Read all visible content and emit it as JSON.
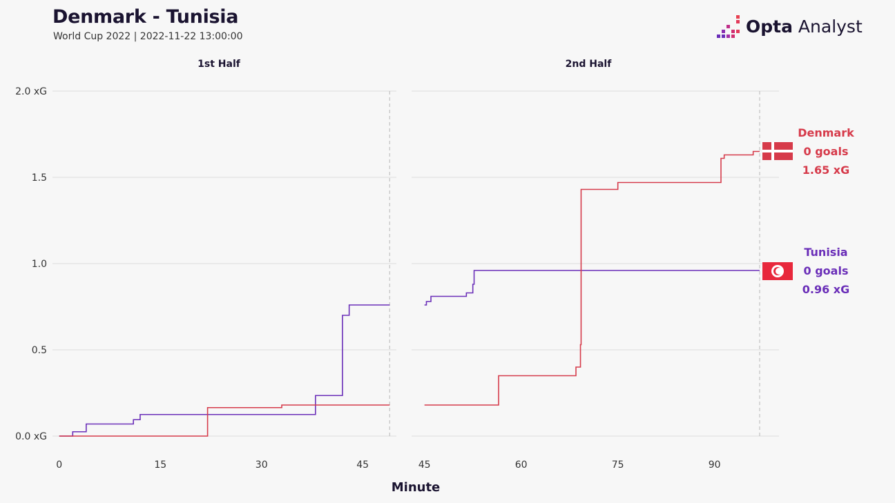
{
  "header": {
    "title": "Denmark - Tunisia",
    "subtitle": "World Cup 2022 | 2022-11-22 13:00:00",
    "logo_bold": "Opta",
    "logo_light": "Analyst"
  },
  "colors": {
    "denmark": "#d63a4a",
    "tunisia": "#6a2eb8",
    "grid": "#dcdcdc",
    "background": "#f7f7f7"
  },
  "chart_data": {
    "type": "line",
    "ylabel_ticks": [
      "0.0 xG",
      "0.5",
      "1.0",
      "1.5",
      "2.0 xG"
    ],
    "y_values": [
      0,
      0.5,
      1.0,
      1.5,
      2.0
    ],
    "ylim": [
      0,
      2.0
    ],
    "xlabel": "Minute",
    "grid": true,
    "panels": [
      {
        "title": "1st Half",
        "xlim": [
          -1,
          50
        ],
        "xticks": [
          0,
          15,
          30,
          45
        ],
        "end_marker": 49,
        "series": [
          {
            "name": "Tunisia",
            "color": "#6a2eb8",
            "steps": [
              [
                0,
                0
              ],
              [
                2,
                0.025
              ],
              [
                4,
                0.07
              ],
              [
                11,
                0.095
              ],
              [
                12,
                0.125
              ],
              [
                38,
                0.235
              ],
              [
                42,
                0.7
              ],
              [
                43,
                0.76
              ],
              [
                49,
                0.76
              ]
            ]
          },
          {
            "name": "Denmark",
            "color": "#d63a4a",
            "steps": [
              [
                0,
                0
              ],
              [
                22,
                0.165
              ],
              [
                33,
                0.18
              ],
              [
                49,
                0.18
              ]
            ]
          }
        ]
      },
      {
        "title": "2nd Half",
        "xlim": [
          43,
          100
        ],
        "xticks": [
          45,
          60,
          75,
          90
        ],
        "end_marker": 97,
        "series": [
          {
            "name": "Tunisia",
            "color": "#6a2eb8",
            "steps": [
              [
                45,
                0.76
              ],
              [
                45.3,
                0.78
              ],
              [
                46,
                0.81
              ],
              [
                51.5,
                0.83
              ],
              [
                52.5,
                0.88
              ],
              [
                52.7,
                0.96
              ],
              [
                97,
                0.96
              ]
            ]
          },
          {
            "name": "Denmark",
            "color": "#d63a4a",
            "steps": [
              [
                45,
                0.18
              ],
              [
                56.5,
                0.35
              ],
              [
                68.5,
                0.4
              ],
              [
                69.2,
                0.53
              ],
              [
                69.3,
                1.43
              ],
              [
                75,
                1.47
              ],
              [
                91,
                1.61
              ],
              [
                91.5,
                1.63
              ],
              [
                96,
                1.65
              ],
              [
                97,
                1.65
              ]
            ]
          }
        ]
      }
    ],
    "teams": [
      {
        "name": "Denmark",
        "goals": "0 goals",
        "xg": "1.65 xG",
        "color": "#d63a4a",
        "flag": "denmark-flag"
      },
      {
        "name": "Tunisia",
        "goals": "0 goals",
        "xg": "0.96 xG",
        "color": "#6a2eb8",
        "flag": "tunisia-flag"
      }
    ]
  }
}
